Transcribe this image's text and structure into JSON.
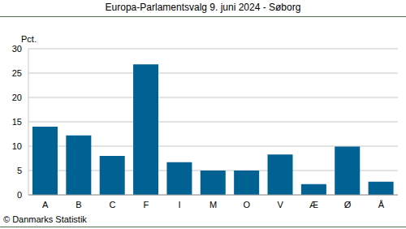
{
  "chart_data": {
    "type": "bar",
    "title": "Europa-Parlamentsvalg 9. juni 2024 - Søborg",
    "y_label": "Pct.",
    "source": "© Danmarks Statistik",
    "categories": [
      "A",
      "B",
      "C",
      "F",
      "I",
      "M",
      "O",
      "V",
      "Æ",
      "Ø",
      "Å"
    ],
    "values": [
      14.0,
      12.2,
      8.0,
      26.8,
      6.7,
      5.0,
      5.0,
      8.3,
      2.2,
      9.9,
      2.7
    ],
    "color": "#006193",
    "ylim": [
      0,
      30
    ],
    "yticks": [
      0,
      5,
      10,
      15,
      20,
      25,
      30
    ],
    "grid": true
  }
}
